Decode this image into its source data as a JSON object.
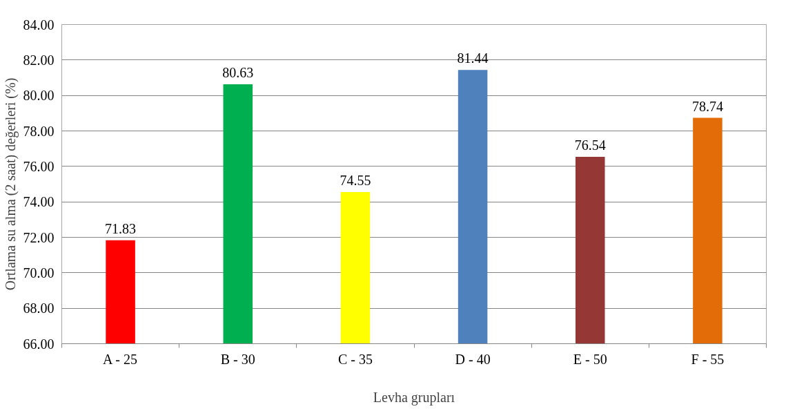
{
  "chart_data": {
    "type": "bar",
    "xlabel": "Levha grupları",
    "ylabel": "Ortlama su alma (2 saat) değerleri (%)",
    "categories": [
      "A - 25",
      "B - 30",
      "C - 35",
      "D - 40",
      "E - 50",
      "F - 55"
    ],
    "values": [
      71.83,
      80.63,
      74.55,
      81.44,
      76.54,
      78.74
    ],
    "colors": [
      "#ff0000",
      "#00b050",
      "#ffff00",
      "#4f81bd",
      "#953735",
      "#e36c09"
    ],
    "ylim": [
      66,
      84
    ],
    "yticks": [
      {
        "value": 66,
        "label": "66.00"
      },
      {
        "value": 68,
        "label": "68.00"
      },
      {
        "value": 70,
        "label": "70.00"
      },
      {
        "value": 72,
        "label": "72.00"
      },
      {
        "value": 74,
        "label": "74.00"
      },
      {
        "value": 76,
        "label": "76.00"
      },
      {
        "value": 78,
        "label": "78.00"
      },
      {
        "value": 80,
        "label": "80.00"
      },
      {
        "value": 82,
        "label": "82.00"
      },
      {
        "value": 84,
        "label": "84.00"
      }
    ],
    "grid": "y",
    "data_labels": true
  }
}
